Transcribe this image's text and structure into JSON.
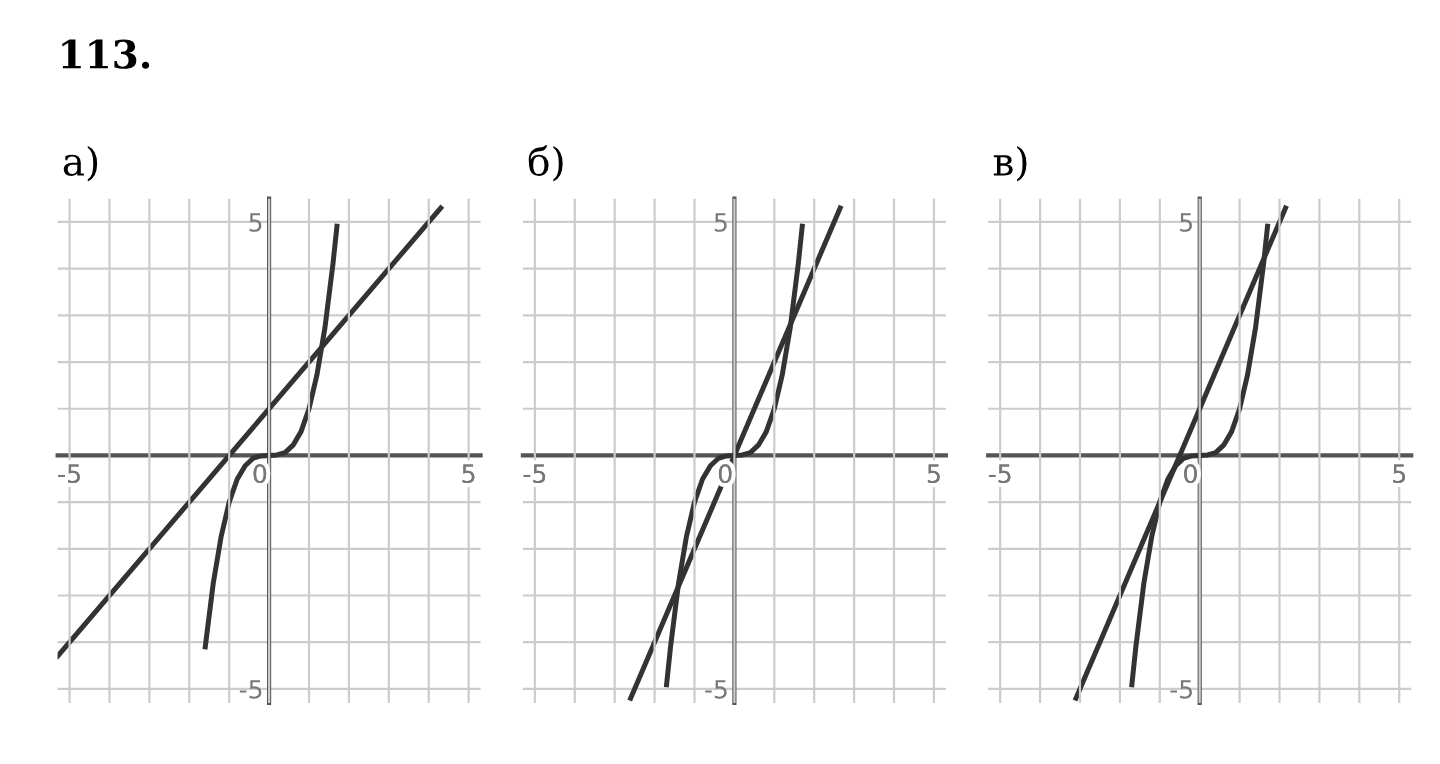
{
  "chart_data": [
    {
      "type": "line",
      "title": "а)",
      "annotations": [
        "113."
      ],
      "xlim": [
        -5.3,
        5.3
      ],
      "ylim": [
        -5.3,
        5.5
      ],
      "xticks": [
        -5,
        {
          "value": -4,
          "label": null
        },
        {
          "value": -3,
          "label": null
        },
        {
          "value": -2,
          "label": null
        },
        {
          "value": -1,
          "label": null
        },
        0,
        {
          "value": 1,
          "label": null
        },
        {
          "value": 2,
          "label": null
        },
        {
          "value": 3,
          "label": null
        },
        {
          "value": 4,
          "label": null
        },
        5
      ],
      "yticks": [
        -5,
        {
          "value": -4,
          "label": null
        },
        {
          "value": -3,
          "label": null
        },
        {
          "value": -2,
          "label": null
        },
        {
          "value": -1,
          "label": null
        },
        {
          "value": 1,
          "label": null
        },
        {
          "value": 2,
          "label": null
        },
        {
          "value": 3,
          "label": null
        },
        {
          "value": 4,
          "label": null
        },
        5
      ],
      "grid": true,
      "marker": "none",
      "line_style": "solid",
      "series": [
        {
          "color": "#333333",
          "x": [
            -1.6,
            -1.4,
            -1.2,
            -1.0,
            -0.8,
            -0.6,
            -0.4,
            -0.2,
            0.0,
            0.2,
            0.4,
            0.6,
            0.8,
            1.0,
            1.2,
            1.4,
            1.6,
            1.7
          ],
          "values": [
            -4.1,
            -2.74,
            -1.73,
            -1.0,
            -0.51,
            -0.22,
            -0.06,
            -0.01,
            0.0,
            0.01,
            0.06,
            0.22,
            0.51,
            1.0,
            1.73,
            2.74,
            4.1,
            4.91
          ]
        },
        {
          "color": "#333333",
          "x": [
            -5.3,
            4.3
          ],
          "values": [
            -4.3,
            5.3
          ]
        }
      ]
    },
    {
      "type": "line",
      "title": "б)",
      "xlim": [
        -5.3,
        5.3
      ],
      "ylim": [
        -5.3,
        5.5
      ],
      "xticks": [
        -5,
        {
          "value": -4,
          "label": null
        },
        {
          "value": -3,
          "label": null
        },
        {
          "value": -2,
          "label": null
        },
        {
          "value": -1,
          "label": null
        },
        0,
        {
          "value": 1,
          "label": null
        },
        {
          "value": 2,
          "label": null
        },
        {
          "value": 3,
          "label": null
        },
        {
          "value": 4,
          "label": null
        },
        5
      ],
      "yticks": [
        -5,
        {
          "value": -4,
          "label": null
        },
        {
          "value": -3,
          "label": null
        },
        {
          "value": -2,
          "label": null
        },
        {
          "value": -1,
          "label": null
        },
        {
          "value": 1,
          "label": null
        },
        {
          "value": 2,
          "label": null
        },
        {
          "value": 3,
          "label": null
        },
        {
          "value": 4,
          "label": null
        },
        5
      ],
      "grid": true,
      "marker": "none",
      "line_style": "solid",
      "series": [
        {
          "color": "#333333",
          "x": [
            -1.7,
            -1.6,
            -1.4,
            -1.2,
            -1.0,
            -0.8,
            -0.6,
            -0.4,
            -0.2,
            0.0,
            0.2,
            0.4,
            0.6,
            0.8,
            1.0,
            1.2,
            1.4,
            1.6,
            1.7
          ],
          "values": [
            -4.91,
            -4.1,
            -2.74,
            -1.73,
            -1.0,
            -0.51,
            -0.22,
            -0.06,
            -0.01,
            0.0,
            0.01,
            0.06,
            0.22,
            0.51,
            1.0,
            1.73,
            2.74,
            4.1,
            4.91
          ]
        },
        {
          "color": "#333333",
          "x": [
            -2.6,
            2.65
          ],
          "values": [
            -5.2,
            5.3
          ]
        }
      ]
    },
    {
      "type": "line",
      "title": "в)",
      "xlim": [
        -5.3,
        5.3
      ],
      "ylim": [
        -5.3,
        5.5
      ],
      "xticks": [
        -5,
        {
          "value": -4,
          "label": null
        },
        {
          "value": -3,
          "label": null
        },
        {
          "value": -2,
          "label": null
        },
        {
          "value": -1,
          "label": null
        },
        0,
        {
          "value": 1,
          "label": null
        },
        {
          "value": 2,
          "label": null
        },
        {
          "value": 3,
          "label": null
        },
        {
          "value": 4,
          "label": null
        },
        5
      ],
      "yticks": [
        -5,
        {
          "value": -4,
          "label": null
        },
        {
          "value": -3,
          "label": null
        },
        {
          "value": -2,
          "label": null
        },
        {
          "value": -1,
          "label": null
        },
        {
          "value": 1,
          "label": null
        },
        {
          "value": 2,
          "label": null
        },
        {
          "value": 3,
          "label": null
        },
        {
          "value": 4,
          "label": null
        },
        5
      ],
      "grid": true,
      "marker": "none",
      "line_style": "solid",
      "series": [
        {
          "color": "#333333",
          "x": [
            -1.7,
            -1.6,
            -1.4,
            -1.2,
            -1.0,
            -0.8,
            -0.6,
            -0.4,
            -0.2,
            0.0,
            0.2,
            0.4,
            0.6,
            0.8,
            1.0,
            1.2,
            1.4,
            1.6,
            1.7
          ],
          "values": [
            -4.91,
            -4.1,
            -2.74,
            -1.73,
            -1.0,
            -0.51,
            -0.22,
            -0.06,
            -0.01,
            0.0,
            0.01,
            0.06,
            0.22,
            0.51,
            1.0,
            1.73,
            2.74,
            4.1,
            4.91
          ]
        },
        {
          "color": "#333333",
          "x": [
            -3.1,
            2.15
          ],
          "values": [
            -5.2,
            5.3
          ]
        }
      ]
    }
  ]
}
